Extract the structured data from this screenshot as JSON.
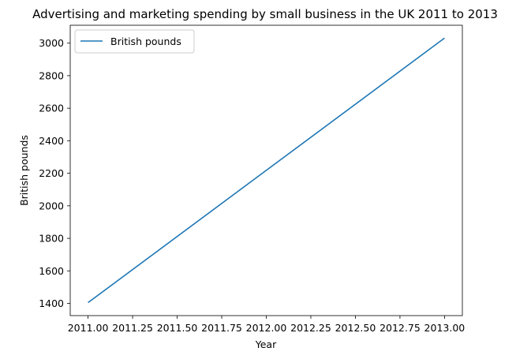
{
  "chart_data": {
    "type": "line",
    "title": "Advertising and marketing spending by small business in the UK 2011 to 2013",
    "xlabel": "Year",
    "ylabel": "British pounds",
    "x": [
      2011,
      2012,
      2013
    ],
    "series": [
      {
        "name": "British pounds",
        "values": [
          1405,
          2218,
          3031
        ],
        "color": "#1f77b4"
      }
    ],
    "xlim": [
      2010.9,
      2013.1
    ],
    "ylim": [
      1325,
      3110
    ],
    "xticks": [
      "2011.00",
      "2011.25",
      "2011.50",
      "2011.75",
      "2012.00",
      "2012.25",
      "2012.50",
      "2012.75",
      "2013.00"
    ],
    "xtick_values": [
      2011.0,
      2011.25,
      2011.5,
      2011.75,
      2012.0,
      2012.25,
      2012.5,
      2012.75,
      2013.0
    ],
    "yticks": [
      "1400",
      "1600",
      "1800",
      "2000",
      "2200",
      "2400",
      "2600",
      "2800",
      "3000"
    ],
    "ytick_values": [
      1400,
      1600,
      1800,
      2000,
      2200,
      2400,
      2600,
      2800,
      3000
    ],
    "grid": false,
    "legend_position": "top-left"
  }
}
